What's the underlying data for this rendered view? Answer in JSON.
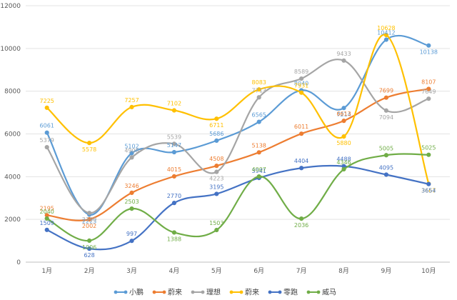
{
  "chart_data": {
    "type": "line",
    "categories": [
      "1月",
      "2月",
      "3月",
      "4月",
      "5月",
      "6月",
      "7月",
      "8月",
      "9月",
      "10月"
    ],
    "ylim": [
      0,
      12000
    ],
    "yticks": [
      0,
      2000,
      4000,
      6000,
      8000,
      10000,
      12000
    ],
    "grid": true,
    "legend_position": "bottom",
    "series": [
      {
        "name": "小鹏",
        "color": "#5b9bd5",
        "values": [
          6061,
          2223,
          5102,
          5147,
          5686,
          6565,
          8040,
          7214,
          10412,
          10138
        ]
      },
      {
        "name": "蔚来",
        "color": "#ed7d31",
        "values": [
          2195,
          2002,
          3246,
          4015,
          4508,
          5138,
          6011,
          6613,
          7699,
          8107
        ]
      },
      {
        "name": "理想",
        "color": "#a5a5a5",
        "values": [
          5379,
          2300,
          4900,
          5539,
          4223,
          7713,
          8589,
          9433,
          7094,
          7649
        ]
      },
      {
        "name": "蔚来",
        "color": "#ffc000",
        "values": [
          7225,
          5578,
          7257,
          7102,
          6711,
          8083,
          7931,
          5880,
          10628,
          3667
        ]
      },
      {
        "name": "零跑",
        "color": "#4472c4",
        "values": [
          1509,
          628,
          997,
          2770,
          3195,
          3941,
          4404,
          4488,
          4095,
          3654
        ]
      },
      {
        "name": "威马",
        "color": "#70ad47",
        "values": [
          2040,
          1006,
          2503,
          1388,
          1503,
          4007,
          2036,
          4346,
          5005,
          5025
        ]
      }
    ]
  }
}
